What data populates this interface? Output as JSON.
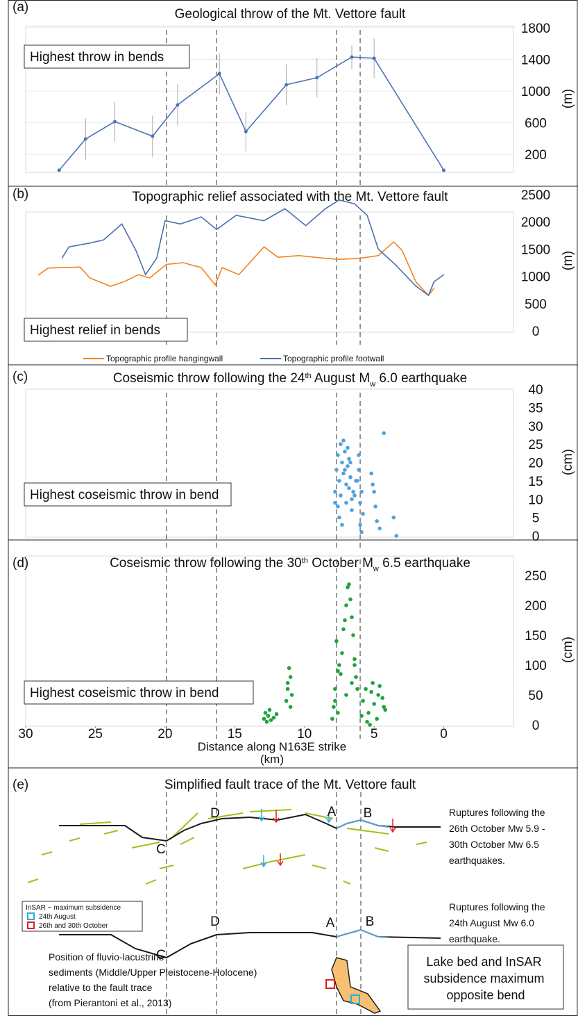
{
  "chart_data": [
    {
      "type": "line",
      "label": "(a)",
      "title": "Geological throw of the Mt. Vettore fault",
      "annotation": "Highest throw in bends",
      "x": [
        27.6,
        25.7,
        23.6,
        20.9,
        19.1,
        16.1,
        14.2,
        11.3,
        9.1,
        6.6,
        5.0,
        0
      ],
      "series": [
        {
          "color": "#4a74b4",
          "values": [
            0,
            395,
            615,
            430,
            825,
            1220,
            490,
            1080,
            1170,
            1430,
            1415,
            0
          ],
          "errors": [
            0,
            260,
            250,
            260,
            260,
            260,
            250,
            260,
            250,
            150,
            250,
            0
          ]
        }
      ],
      "markers": true,
      "xlim": [
        30,
        -5
      ],
      "ylim": [
        0,
        1800
      ],
      "yticks": [
        200,
        600,
        1000,
        1400,
        1800
      ],
      "ylabel": "(m)",
      "grid": true,
      "bend_lines": [
        19.9,
        16.3,
        7.7,
        6.0
      ]
    },
    {
      "type": "line",
      "label": "(b)",
      "title": "Topographic relief associated with the Mt. Vettore fault",
      "annotation": "Highest relief in bends",
      "series": [
        {
          "name": "Topographic profile hangingwall",
          "color": "#f0841c",
          "x": [
            29.1,
            28.4,
            27.4,
            26.1,
            25.4,
            23.9,
            22.9,
            21.9,
            21.1,
            19.9,
            18.7,
            17.4,
            16.4,
            15.9,
            14.7,
            12.9,
            11.9,
            10.4,
            8.5,
            7.5,
            6.0,
            4.7,
            3.6,
            3.0,
            2.0,
            1.1,
            0.7
          ],
          "values": [
            1020,
            1150,
            1160,
            1170,
            970,
            816,
            906,
            1030,
            970,
            1220,
            1250,
            1160,
            840,
            1160,
            1030,
            1540,
            1350,
            1380,
            1330,
            1310,
            1330,
            1380,
            1630,
            1480,
            900,
            650,
            780
          ]
        },
        {
          "name": "Topographic profile footwall",
          "color": "#4a6fb0",
          "x": [
            27.4,
            26.9,
            25.4,
            24.4,
            23.1,
            22.1,
            21.4,
            20.6,
            20.0,
            18.9,
            17.4,
            16.3,
            14.9,
            12.9,
            11.4,
            9.9,
            8.5,
            7.5,
            6.4,
            5.5,
            4.7,
            3.5,
            2.0,
            1.1,
            0.7,
            0
          ],
          "values": [
            1330,
            1540,
            1610,
            1670,
            1960,
            1480,
            1030,
            1330,
            2020,
            1960,
            2090,
            1860,
            2120,
            2020,
            2240,
            1930,
            2240,
            2400,
            2330,
            2120,
            1500,
            1220,
            820,
            650,
            900,
            1030
          ]
        }
      ],
      "legend": "bottom",
      "xlim": [
        30,
        -5
      ],
      "ylim": [
        0,
        2500
      ],
      "yticks": [
        0,
        500,
        1000,
        1500,
        2000,
        2500
      ],
      "ylabel": "(m)",
      "grid": false,
      "bend_lines": [
        19.9,
        16.3,
        7.7,
        6.0
      ]
    },
    {
      "type": "scatter",
      "label": "(c)",
      "title": [
        {
          "text": "Coseismic throw following the 24"
        },
        {
          "text": "th",
          "script": "super"
        },
        {
          "text": " August M"
        },
        {
          "text": "w",
          "script": "sub"
        },
        {
          "text": " 6.0 earthquake"
        }
      ],
      "annotation": "Highest coseismic throw in bend",
      "x": [
        7.8,
        7.7,
        7.6,
        7.5,
        7.4,
        7.3,
        7.2,
        7.1,
        7.0,
        6.9,
        6.8,
        6.7,
        6.6,
        6.5,
        7.6,
        7.4,
        7.2,
        7.0,
        6.8,
        6.6,
        7.5,
        7.3,
        7.1,
        6.9,
        6.7,
        6.2,
        6.1,
        6.0,
        5.9,
        5.8,
        6.1,
        6.0,
        5.9,
        5.2,
        5.0,
        4.9,
        4.8,
        5.1,
        4.3,
        3.6,
        3.4,
        7.8,
        6.4,
        6.3,
        4.6
      ],
      "series": [
        {
          "color": "#4fa3dc",
          "values": [
            12,
            18,
            22,
            15,
            25,
            20,
            17,
            23,
            14,
            19,
            21,
            16,
            10,
            12,
            8,
            11,
            26,
            9,
            13,
            7,
            5,
            3,
            18,
            24,
            20,
            15,
            22,
            9,
            12,
            6,
            18,
            3,
            1,
            17,
            12,
            8,
            4,
            14,
            28,
            5,
            0,
            9,
            11,
            15,
            2
          ]
        }
      ],
      "xlim": [
        30,
        -5
      ],
      "ylim": [
        0,
        40
      ],
      "yticks": [
        0,
        5,
        10,
        15,
        20,
        25,
        30,
        35,
        40
      ],
      "ylabel": "(cm)",
      "grid": false,
      "bend_lines": [
        19.9,
        16.3,
        7.7,
        6.0
      ]
    },
    {
      "type": "scatter",
      "label": "(d)",
      "title": [
        {
          "text": "Coseismic throw following the 30"
        },
        {
          "text": "th",
          "script": "super"
        },
        {
          "text": " October M"
        },
        {
          "text": "w",
          "script": "sub"
        },
        {
          "text": " 6.5 earthquake"
        }
      ],
      "annotation": "Highest coseismic throw in bend",
      "x": [
        12.9,
        12.8,
        12.7,
        12.6,
        12.5,
        12.4,
        12.2,
        12.0,
        11.3,
        11.2,
        11.1,
        11.0,
        10.9,
        11.2,
        11.0,
        8.0,
        7.9,
        7.8,
        7.7,
        7.6,
        7.5,
        7.4,
        7.3,
        7.2,
        7.1,
        7.0,
        6.9,
        6.8,
        6.7,
        6.6,
        6.5,
        6.4,
        6.3,
        6.2,
        7.8,
        7.6,
        7.0,
        6.6,
        6.4,
        5.8,
        5.6,
        5.4,
        5.2,
        5.0,
        4.8,
        4.6,
        4.4,
        4.2,
        5.5,
        5.1,
        4.7,
        4.3,
        5.9,
        5.3
      ],
      "series": [
        {
          "color": "#1fa33a",
          "values": [
            10,
            20,
            5,
            15,
            25,
            8,
            12,
            18,
            40,
            60,
            95,
            80,
            50,
            70,
            30,
            10,
            30,
            60,
            140,
            90,
            100,
            85,
            120,
            160,
            175,
            200,
            230,
            235,
            210,
            180,
            150,
            110,
            80,
            60,
            40,
            20,
            50,
            70,
            100,
            40,
            60,
            20,
            55,
            35,
            10,
            65,
            45,
            25,
            5,
            70,
            50,
            30,
            15,
            0
          ]
        }
      ],
      "xlim": [
        30,
        -5
      ],
      "xticks": [
        30,
        25,
        20,
        15,
        10,
        5,
        0
      ],
      "xlabel": "Distance along N163E strike",
      "xunit": "(km)",
      "ylim": [
        0,
        250
      ],
      "yticks": [
        0,
        50,
        100,
        150,
        200,
        250
      ],
      "ylabel": "(cm)",
      "grid": false,
      "bend_lines": [
        19.9,
        16.3,
        7.7,
        6.0
      ]
    }
  ],
  "fault_trace": {
    "label": "(e)",
    "title": "Simplified fault trace of the Mt. Vettore fault",
    "upper": {
      "labels": [
        "C",
        "D",
        "A",
        "B"
      ],
      "caption": [
        "Ruptures following the",
        "26th October Mw 5.9 -",
        "30th October Mw 6.5",
        "earthquakes."
      ]
    },
    "lower": {
      "labels": [
        "C",
        "D",
        "A",
        "B"
      ],
      "caption": [
        "Ruptures following the",
        "24th August Mw 6.0",
        "earthquake."
      ]
    },
    "legend": {
      "title": "InSAR ~ maximum subsidence",
      "items": [
        "24th August",
        "26th and 30th October"
      ]
    },
    "sediments": [
      "Position of fluvio-lacustrine",
      "sediments (Middle/Upper Pleistocene-Holocene)",
      "relative to the fault trace",
      "(from Pierantoni et al., 2013)"
    ],
    "box": [
      "Lake bed and InSAR",
      "subsidence maximum",
      "opposite bend"
    ]
  }
}
